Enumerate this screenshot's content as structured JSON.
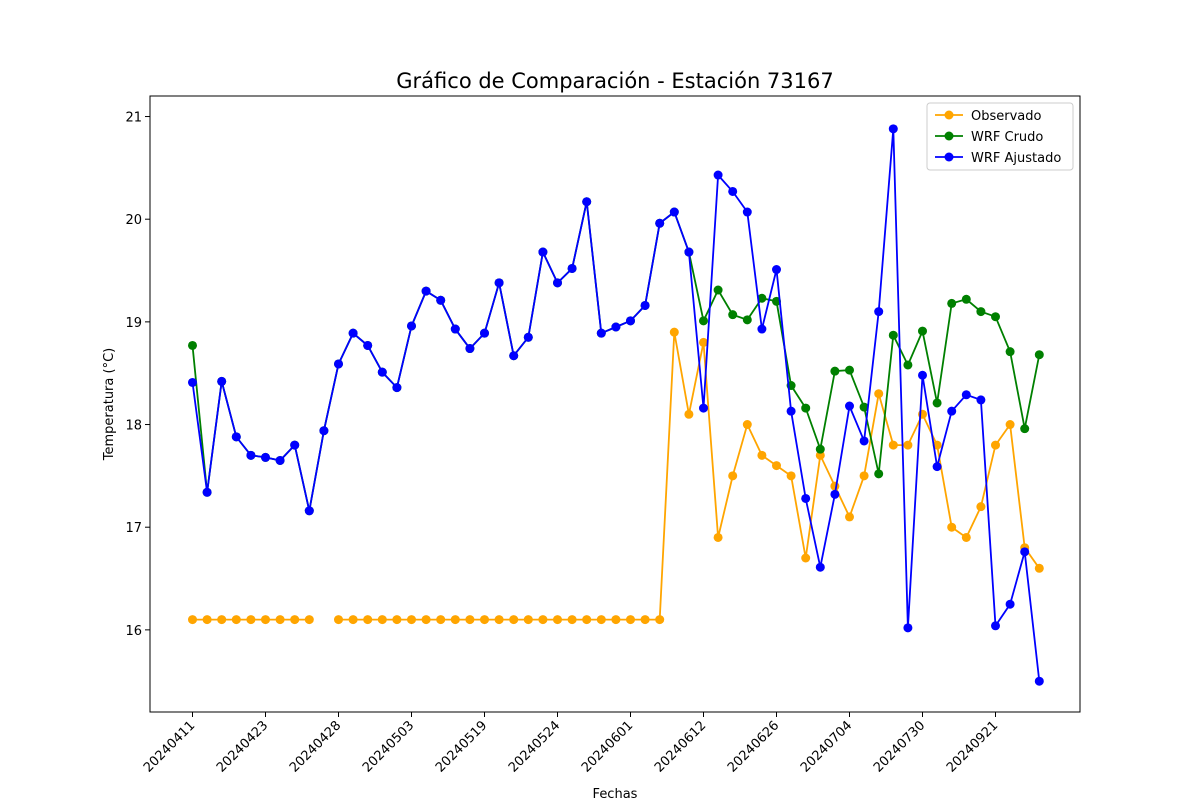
{
  "chart_data": {
    "type": "line",
    "title": "Gráfico de Comparación - Estación 73167",
    "xlabel": "Fechas",
    "ylabel": "Temperatura (°C)",
    "x_tick_labels": [
      "20240411",
      "20240423",
      "20240428",
      "20240503",
      "20240519",
      "20240524",
      "20240601",
      "20240612",
      "20240626",
      "20240704",
      "20240730",
      "20240921"
    ],
    "ylim": [
      15.2,
      21.2
    ],
    "y_ticks": [
      16,
      17,
      18,
      19,
      20,
      21
    ],
    "legend_position": "top-right",
    "grid": false,
    "series": [
      {
        "name": "Observado",
        "color": "#ffa500",
        "values": [
          16.1,
          16.1,
          16.1,
          16.1,
          16.1,
          16.1,
          16.1,
          16.1,
          16.1,
          null,
          16.1,
          16.1,
          16.1,
          16.1,
          16.1,
          16.1,
          16.1,
          16.1,
          16.1,
          16.1,
          16.1,
          16.1,
          16.1,
          16.1,
          16.1,
          16.1,
          16.1,
          16.1,
          16.1,
          16.1,
          16.1,
          16.1,
          16.1,
          18.9,
          18.1,
          18.8,
          16.9,
          17.5,
          18.0,
          17.7,
          17.6,
          17.5,
          16.7,
          17.7,
          17.4,
          17.1,
          17.5,
          18.3,
          17.8,
          17.8,
          18.1,
          17.8,
          17.0,
          16.9,
          17.2,
          17.8,
          18.0,
          16.8,
          16.6
        ]
      },
      {
        "name": "WRF Crudo",
        "color": "#008000",
        "values": [
          18.77,
          17.34,
          18.42,
          17.88,
          17.7,
          17.68,
          17.65,
          17.8,
          17.16,
          17.94,
          18.59,
          18.89,
          18.77,
          18.51,
          18.36,
          18.96,
          19.3,
          19.21,
          18.93,
          18.74,
          18.89,
          19.38,
          18.67,
          18.85,
          19.68,
          19.38,
          19.52,
          20.17,
          18.89,
          18.95,
          19.01,
          19.16,
          19.96,
          20.07,
          19.68,
          19.01,
          19.31,
          19.07,
          19.02,
          19.23,
          19.2,
          18.38,
          18.16,
          17.76,
          18.52,
          18.53,
          18.17,
          17.52,
          18.87,
          18.58,
          18.91,
          18.21,
          19.18,
          19.22,
          19.1,
          19.05,
          18.71,
          17.96,
          18.68
        ]
      },
      {
        "name": "WRF Ajustado",
        "color": "#0000ff",
        "values": [
          18.41,
          17.34,
          18.42,
          17.88,
          17.7,
          17.68,
          17.65,
          17.8,
          17.16,
          17.94,
          18.59,
          18.89,
          18.77,
          18.51,
          18.36,
          18.96,
          19.3,
          19.21,
          18.93,
          18.74,
          18.89,
          19.38,
          18.67,
          18.85,
          19.68,
          19.38,
          19.52,
          20.17,
          18.89,
          18.95,
          19.01,
          19.16,
          19.96,
          20.07,
          19.68,
          18.16,
          20.43,
          20.27,
          20.07,
          18.93,
          19.51,
          18.13,
          17.28,
          16.61,
          17.32,
          18.18,
          17.84,
          19.1,
          20.88,
          16.02,
          18.48,
          17.59,
          18.13,
          18.29,
          18.24,
          16.04,
          16.25,
          16.76,
          15.5
        ]
      }
    ]
  }
}
